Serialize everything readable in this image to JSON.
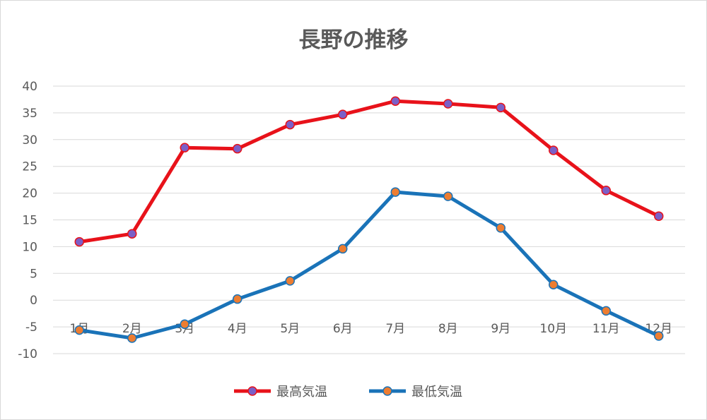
{
  "chart_data": {
    "type": "line",
    "title": "長野の推移",
    "categories": [
      "1月",
      "2月",
      "3月",
      "4月",
      "5月",
      "6月",
      "7月",
      "8月",
      "9月",
      "10月",
      "11月",
      "12月"
    ],
    "series": [
      {
        "name": "最高気温",
        "values": [
          10.9,
          12.4,
          28.5,
          28.3,
          32.8,
          34.7,
          37.2,
          36.7,
          36.0,
          28.0,
          20.5,
          15.7
        ],
        "line_color": "#e8121a",
        "marker_fill": "#7b5fc7",
        "marker_stroke": "#e8121a"
      },
      {
        "name": "最低気温",
        "values": [
          -5.6,
          -7.1,
          -4.5,
          0.2,
          3.6,
          9.6,
          20.2,
          19.4,
          13.5,
          2.9,
          -2.0,
          -6.7
        ],
        "line_color": "#1a73b8",
        "marker_fill": "#ed7d31",
        "marker_stroke": "#1a73b8"
      }
    ],
    "ylim": [
      -10,
      40
    ],
    "ytick_step": 5,
    "grid": true,
    "legend_position": "bottom"
  },
  "colors": {
    "gridline": "#d9d9d9",
    "text": "#595959"
  }
}
